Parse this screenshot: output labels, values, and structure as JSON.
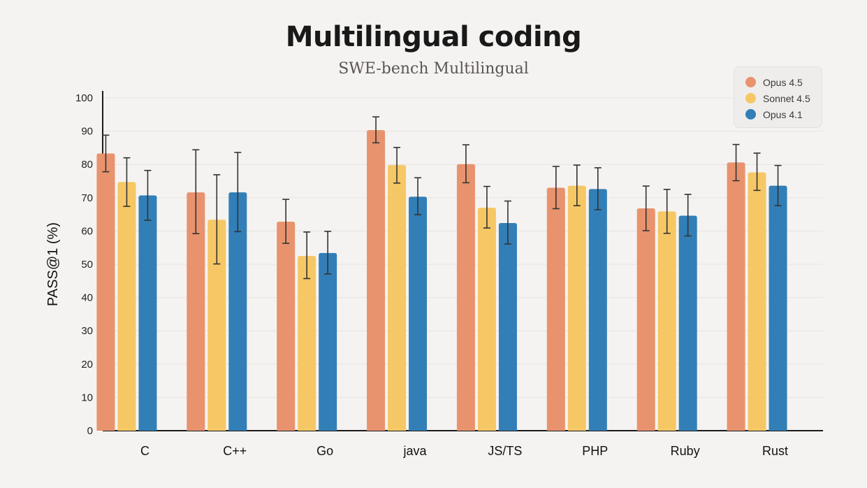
{
  "chart_data": {
    "type": "bar",
    "title": "Multilingual coding",
    "subtitle": "SWE-bench Multilingual",
    "xlabel": "",
    "ylabel": "PASS@1 (%)",
    "ylim": [
      0,
      100
    ],
    "yticks": [
      0,
      10,
      20,
      30,
      40,
      50,
      60,
      70,
      80,
      90,
      100
    ],
    "grid": true,
    "legend_position": "top-right",
    "categories": [
      "C",
      "C++",
      "Go",
      "java",
      "JS/TS",
      "PHP",
      "Ruby",
      "Rust"
    ],
    "series": [
      {
        "name": "Opus 4.5",
        "color": "#e8936e",
        "values": [
          83.3,
          71.6,
          62.8,
          90.3,
          80.1,
          73.0,
          66.8,
          80.6
        ],
        "error_low": [
          77.8,
          59.2,
          56.3,
          86.5,
          74.5,
          66.7,
          60.1,
          75.1
        ],
        "error_high": [
          88.8,
          84.4,
          69.5,
          94.3,
          85.9,
          79.4,
          73.5,
          86.0
        ]
      },
      {
        "name": "Sonnet 4.5",
        "color": "#f6c765",
        "values": [
          74.7,
          63.4,
          52.5,
          79.8,
          67.0,
          73.6,
          65.9,
          77.6
        ],
        "error_low": [
          67.4,
          50.1,
          45.7,
          74.4,
          60.9,
          67.6,
          59.3,
          72.2
        ],
        "error_high": [
          82.0,
          76.9,
          59.7,
          85.1,
          73.4,
          79.8,
          72.5,
          83.4
        ]
      },
      {
        "name": "Opus 4.1",
        "color": "#327fb8",
        "values": [
          70.7,
          71.6,
          53.4,
          70.3,
          62.4,
          72.6,
          64.6,
          73.6
        ],
        "error_low": [
          63.2,
          59.8,
          47.1,
          64.9,
          56.1,
          66.4,
          58.5,
          67.6
        ],
        "error_high": [
          78.2,
          83.6,
          59.9,
          76.0,
          69.0,
          79.0,
          71.0,
          79.7
        ]
      }
    ]
  }
}
